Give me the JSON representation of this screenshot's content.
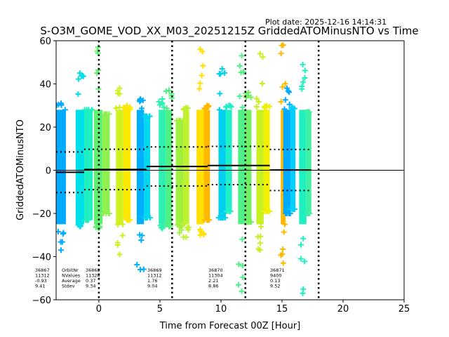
{
  "chart_data": {
    "type": "scatter",
    "title": "S-O3M_GOME_VOD_XX_M03_20251215Z GriddedATOMinusNTO vs Time",
    "subtitle": "Plot date: 2025-12-16 14:14:31",
    "xlabel": "Time from Forecast 00Z [Hour]",
    "ylabel": "GriddedATOMinusNTO",
    "xlim": [
      -3.5,
      25
    ],
    "ylim": [
      -60,
      60
    ],
    "xticks": [
      0,
      5,
      10,
      15,
      20,
      25
    ],
    "yticks": [
      -60,
      -40,
      -20,
      0,
      20,
      40,
      60
    ],
    "marker": "+",
    "forecast_lines": [
      0,
      6,
      12,
      18
    ],
    "zero_line": 0,
    "stripes": [
      {
        "x0": -3.5,
        "x1": -2.7,
        "ymin": -37,
        "ymax": 31,
        "color": "#00aaff"
      },
      {
        "x0": -1.9,
        "x1": -1.2,
        "ymin": -26,
        "ymax": 45,
        "color": "#00e0e8"
      },
      {
        "x0": -1.2,
        "x1": -0.5,
        "ymin": -23,
        "ymax": 28,
        "color": "#20f0c0"
      },
      {
        "x0": -0.4,
        "x1": 0.3,
        "ymin": -27,
        "ymax": 57,
        "color": "#60f070"
      },
      {
        "x0": 0.3,
        "x1": 0.9,
        "ymin": -20,
        "ymax": 26,
        "color": "#90f050"
      },
      {
        "x0": 1.4,
        "x1": 2.0,
        "ymin": -39,
        "ymax": 38,
        "color": "#d0f020"
      },
      {
        "x0": 2.0,
        "x1": 2.6,
        "ymin": -23,
        "ymax": 30,
        "color": "#ffe800"
      },
      {
        "x0": 3.1,
        "x1": 3.7,
        "ymin": -46,
        "ymax": 33,
        "color": "#00b0ff"
      },
      {
        "x0": 3.7,
        "x1": 4.2,
        "ymin": -22,
        "ymax": 25,
        "color": "#00d8f0"
      },
      {
        "x0": 4.9,
        "x1": 5.5,
        "ymin": -27,
        "ymax": 33,
        "color": "#30f0b0"
      },
      {
        "x0": 5.5,
        "x1": 6.0,
        "ymin": -26,
        "ymax": 37,
        "color": "#50f080"
      },
      {
        "x0": 6.3,
        "x1": 6.9,
        "ymin": -29,
        "ymax": 23,
        "color": "#a0f040"
      },
      {
        "x0": 6.9,
        "x1": 7.4,
        "ymin": -31,
        "ymax": 29,
        "color": "#c0f030"
      },
      {
        "x0": 8.0,
        "x1": 8.6,
        "ymin": -30,
        "ymax": 56,
        "color": "#ffe000"
      },
      {
        "x0": 8.6,
        "x1": 9.1,
        "ymin": -23,
        "ymax": 30,
        "color": "#ffb800"
      },
      {
        "x0": 9.8,
        "x1": 10.4,
        "ymin": -22,
        "ymax": 47,
        "color": "#00d0f0"
      },
      {
        "x0": 10.4,
        "x1": 10.9,
        "ymin": -19,
        "ymax": 30,
        "color": "#20f0c8"
      },
      {
        "x0": 11.4,
        "x1": 12.0,
        "ymin": -56,
        "ymax": 53,
        "color": "#50f088"
      },
      {
        "x0": 12.0,
        "x1": 12.5,
        "ymin": -24,
        "ymax": 36,
        "color": "#70f060"
      },
      {
        "x0": 12.9,
        "x1": 13.5,
        "ymin": -37,
        "ymax": 54,
        "color": "#c8f020"
      },
      {
        "x0": 13.5,
        "x1": 14.0,
        "ymin": -19,
        "ymax": 30,
        "color": "#f0f000"
      },
      {
        "x0": 14.9,
        "x1": 15.3,
        "ymin": -43,
        "ymax": 58,
        "color": "#ffb800"
      },
      {
        "x0": 15.1,
        "x1": 15.7,
        "ymin": -20,
        "ymax": 38,
        "color": "#00aaff"
      },
      {
        "x0": 15.7,
        "x1": 16.1,
        "ymin": -18,
        "ymax": 29,
        "color": "#00d0ff"
      },
      {
        "x0": 16.4,
        "x1": 17.0,
        "ymin": -57,
        "ymax": 49,
        "color": "#20f0c0"
      },
      {
        "x0": 17.0,
        "x1": 17.4,
        "ymin": -20,
        "ymax": 27,
        "color": "#40f0a0"
      }
    ],
    "orbits": [
      {
        "orbit": "36867",
        "nvalues": "11312",
        "average": "-0.93",
        "stdev": "9.41",
        "t0": -3.5,
        "t1": -1.2,
        "mean": -0.93,
        "sd": 9.41
      },
      {
        "orbit": "36868",
        "nvalues": "11328",
        "average": "0.37",
        "stdev": "9.34",
        "t0": -1.2,
        "t1": 3.9,
        "mean": 0.37,
        "sd": 9.34
      },
      {
        "orbit": "36869",
        "nvalues": "11312",
        "average": "1.76",
        "stdev": "9.04",
        "t0": 3.9,
        "t1": 8.9,
        "mean": 1.76,
        "sd": 9.04
      },
      {
        "orbit": "36870",
        "nvalues": "11304",
        "average": "2.21",
        "stdev": "8.86",
        "t0": 8.9,
        "t1": 14.0,
        "mean": 2.21,
        "sd": 8.86
      },
      {
        "orbit": "36871",
        "nvalues": "9400",
        "average": "0.13",
        "stdev": "9.52",
        "t0": 14.0,
        "t1": 17.4,
        "mean": 0.13,
        "sd": 9.52
      }
    ],
    "annotation_labels": {
      "orbit": "OrbitNr",
      "nvalues": "NValues",
      "average": "Average",
      "stdev": "Stdev"
    }
  }
}
